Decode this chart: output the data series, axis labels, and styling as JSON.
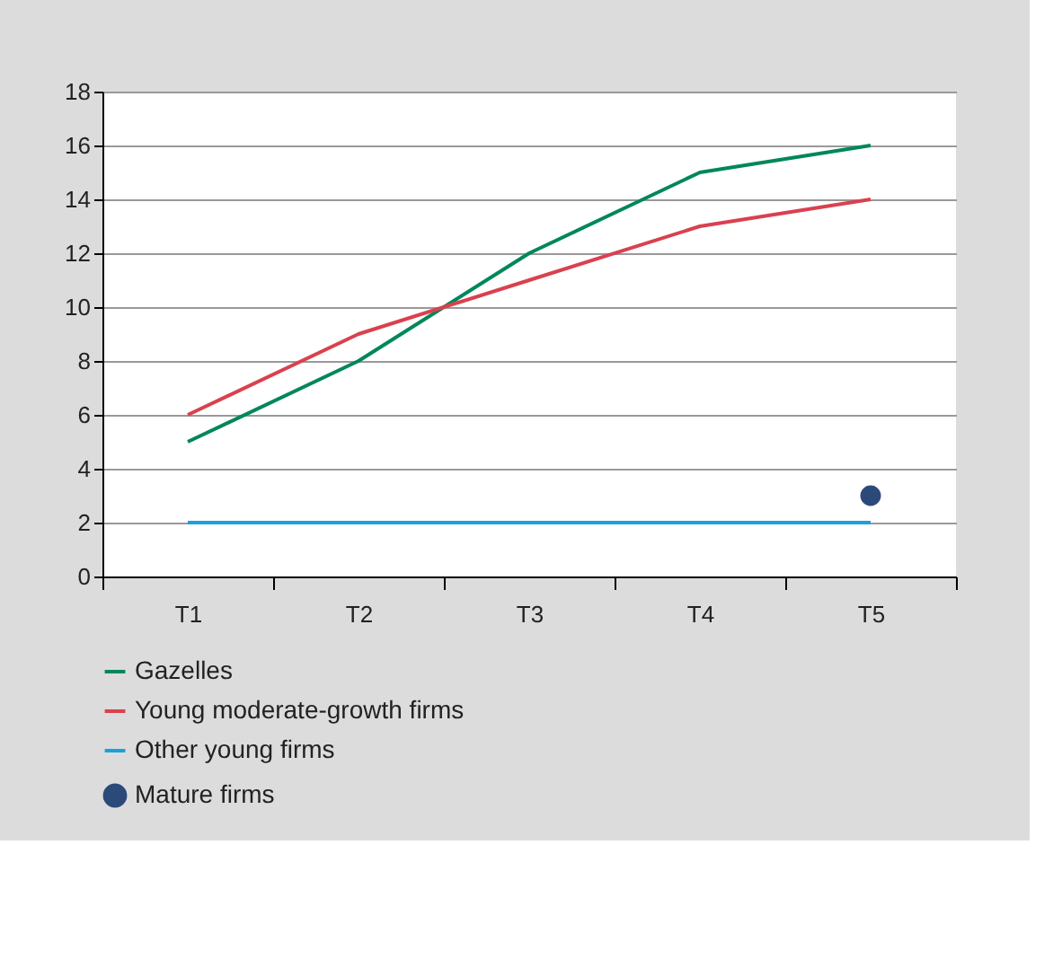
{
  "chart_data": {
    "type": "line",
    "categories": [
      "T1",
      "T2",
      "T3",
      "T4",
      "T5"
    ],
    "series": [
      {
        "name": "Gazelles",
        "color": "#00875a",
        "values": [
          5,
          8,
          12,
          15,
          16
        ]
      },
      {
        "name": "Young moderate-growth firms",
        "color": "#d9414f",
        "values": [
          6,
          9,
          11,
          13,
          14
        ]
      },
      {
        "name": "Other young firms",
        "color": "#1aa0dc",
        "values": [
          2,
          2,
          2,
          2,
          2
        ]
      },
      {
        "name": "Mature firms",
        "color": "#2b4a7a",
        "type": "scatter",
        "marker": "circle",
        "values": [
          null,
          null,
          null,
          null,
          3
        ]
      }
    ],
    "ylim": [
      0,
      18
    ],
    "yticks": [
      0,
      2,
      4,
      6,
      8,
      10,
      12,
      14,
      16,
      18
    ],
    "grid": "y",
    "legend": "bottom",
    "line_style": "solid"
  }
}
